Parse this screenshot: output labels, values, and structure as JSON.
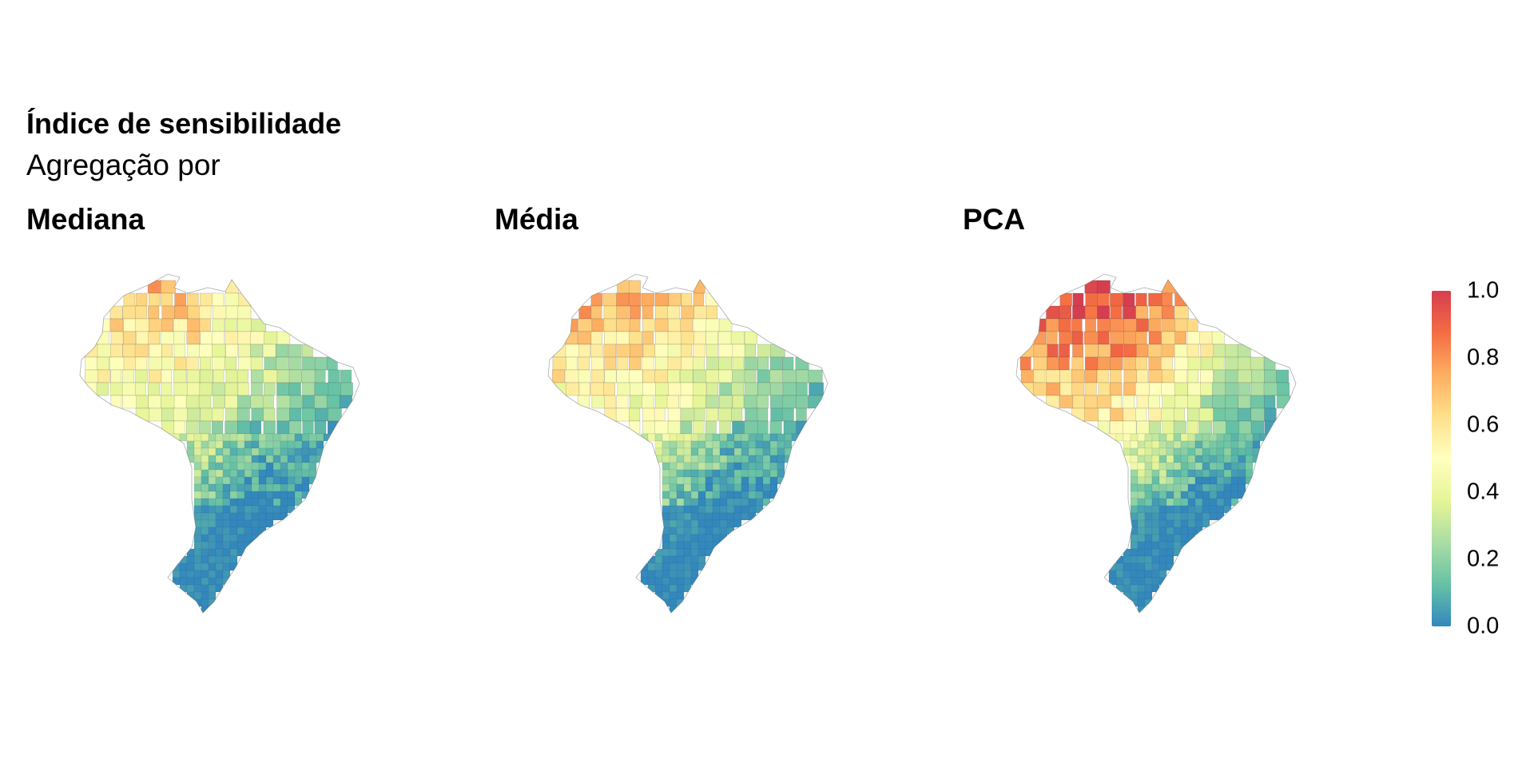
{
  "title": "Índice de sensibilidade",
  "subtitle": "Agregação por",
  "panels": [
    {
      "name": "Mediana",
      "palette_bias": 0.3
    },
    {
      "name": "Média",
      "palette_bias": 0.4
    },
    {
      "name": "PCA",
      "palette_bias": 0.75
    }
  ],
  "legend": {
    "ticks": [
      "1.0",
      "0.8",
      "0.6",
      "0.4",
      "0.2",
      "0.0"
    ],
    "range": [
      0,
      1
    ],
    "colors": [
      "#3288bd",
      "#66c2a5",
      "#abdda4",
      "#e6f598",
      "#ffffbf",
      "#fee08b",
      "#fdae61",
      "#f46d43",
      "#d53e4f"
    ]
  }
}
